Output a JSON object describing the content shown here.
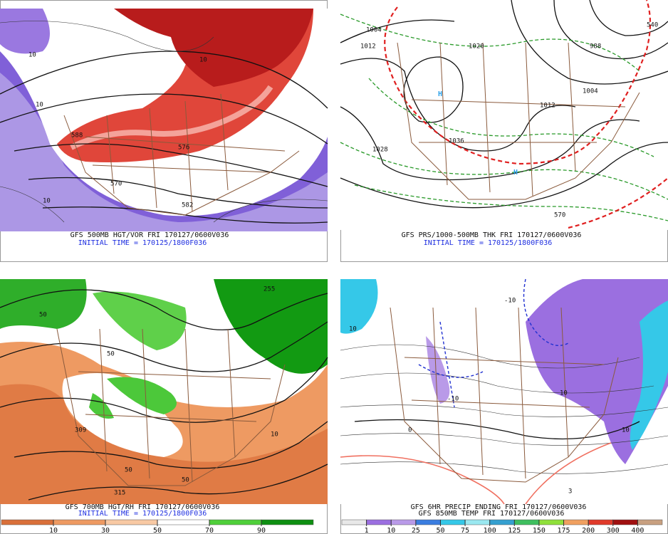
{
  "panels": [
    {
      "caption": [
        "GFS 500MB HGT/VOR FRI 170127/0600V036",
        "INITIAL TIME = 170125/1800F036"
      ],
      "labels": [
        "10",
        "10",
        "588",
        "576",
        "570",
        "582",
        "10",
        "10"
      ]
    },
    {
      "caption": [
        "GFS PRS/1000-500MB THK FRI 170127/0600V036",
        "INITIAL TIME = 170125/1800F036"
      ],
      "labels": [
        "1004",
        "1012",
        "1020",
        "988",
        "H",
        "H",
        "1036",
        "1028",
        "1012",
        "1004",
        "570",
        "540"
      ]
    },
    {
      "caption": [
        "GFS 700MB HGT/RH FRI 170127/0600V036",
        "INITIAL TIME = 170125/1800F036"
      ],
      "labels": [
        "50",
        "50",
        "255",
        "309",
        "315",
        "50",
        "10",
        "50"
      ],
      "colorbar": {
        "ticks": [
          10,
          30,
          50,
          70,
          90
        ],
        "colors": [
          "#d9703a",
          "#ee9a62",
          "#f8c9a4",
          "#ffffff",
          "#4fcf3a",
          "#0e8f12"
        ]
      }
    },
    {
      "caption": [
        "GFS 6HR PRECIP ENDING FRI 170127/0600V036",
        "GFS 850MB TEMP FRI 170127/0600V036"
      ],
      "labels": [
        "10",
        "-10",
        "10",
        "10",
        "0",
        "3",
        "-10"
      ],
      "colorbar": {
        "ticks": [
          1,
          10,
          25,
          50,
          75,
          100,
          125,
          150,
          175,
          200,
          300,
          400
        ],
        "colors": [
          "#e8e8e8",
          "#9b6fe0",
          "#b99ae8",
          "#3a7de0",
          "#35c8e8",
          "#9ae8f0",
          "#35a0d0",
          "#3fbf5f",
          "#8fe03a",
          "#f0a060",
          "#e03a2a",
          "#a01010",
          "#c8a080"
        ]
      }
    }
  ]
}
